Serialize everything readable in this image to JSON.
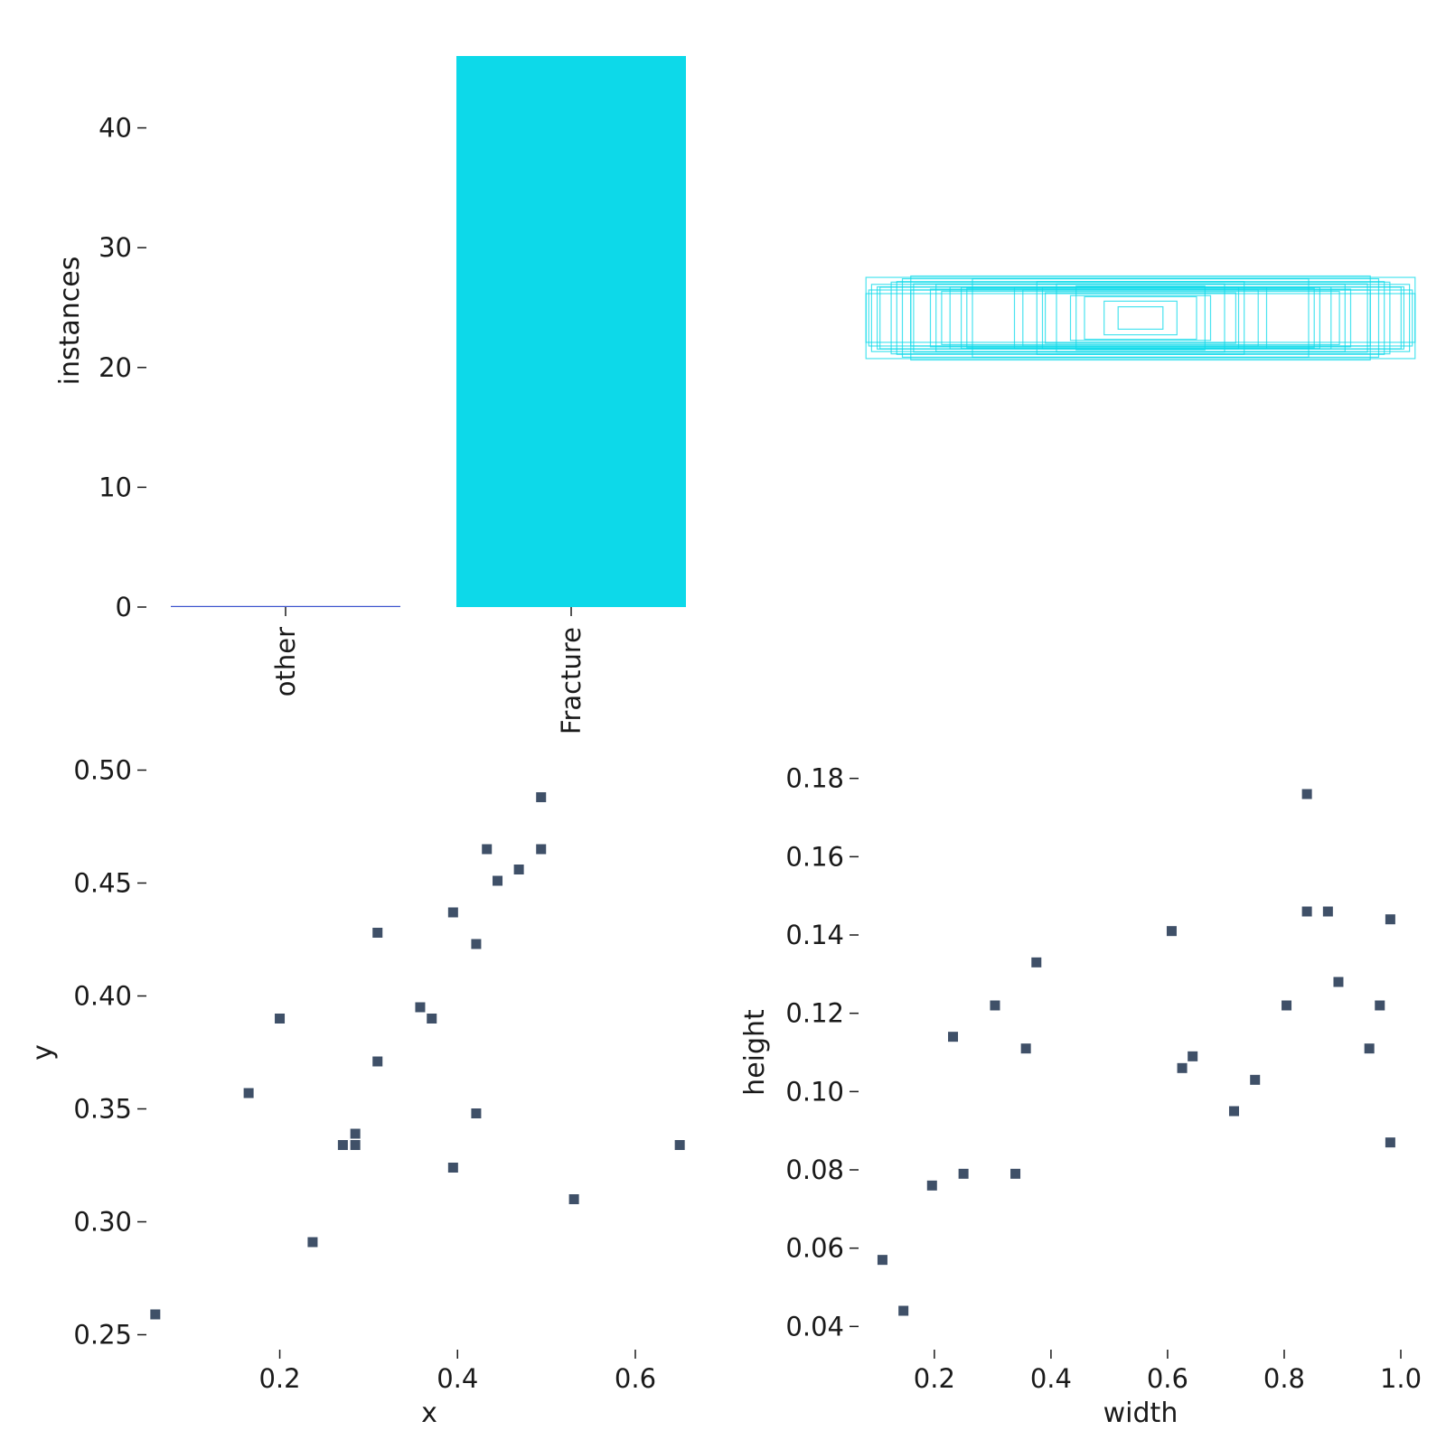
{
  "chart_data": [
    {
      "type": "bar",
      "categories": [
        "other",
        "Fracture"
      ],
      "values": [
        0,
        46
      ],
      "colors": [
        "#3a52cc",
        "#0dd9e9"
      ],
      "ylabel": "instances",
      "xlabel": "",
      "ylim": [
        0,
        46
      ],
      "yticks": [
        0,
        10,
        20,
        30,
        40
      ],
      "grid": false
    },
    {
      "type": "rectangles",
      "description": "bounding boxes overlaid at common center",
      "color": "#0dd9e9",
      "boxes": [
        [
          0.93,
          0.11
        ],
        [
          0.87,
          0.13
        ],
        [
          0.82,
          0.1
        ],
        [
          0.97,
          0.1
        ],
        [
          0.68,
          0.11
        ],
        [
          0.82,
          0.15
        ],
        [
          0.42,
          0.1
        ],
        [
          0.13,
          0.06
        ],
        [
          0.08,
          0.04
        ],
        [
          0.34,
          0.09
        ],
        [
          0.73,
          0.12
        ],
        [
          0.96,
          0.12
        ],
        [
          0.85,
          0.14
        ],
        [
          0.98,
          0.145
        ],
        [
          0.6,
          0.14
        ],
        [
          0.45,
          0.11
        ],
        [
          0.37,
          0.13
        ],
        [
          0.25,
          0.08
        ],
        [
          0.2,
          0.076
        ],
        [
          0.3,
          0.122
        ],
        [
          0.62,
          0.106
        ],
        [
          0.64,
          0.109
        ],
        [
          0.71,
          0.095
        ],
        [
          0.75,
          0.103
        ],
        [
          0.89,
          0.128
        ],
        [
          0.94,
          0.111
        ],
        [
          0.98,
          0.087
        ],
        [
          0.35,
          0.111
        ],
        [
          0.23,
          0.114
        ],
        [
          0.81,
          0.122
        ]
      ]
    },
    {
      "type": "scatter",
      "xlabel": "x",
      "ylabel": "y",
      "xlim": [
        0.05,
        0.66
      ],
      "ylim": [
        0.245,
        0.505
      ],
      "xticks": [
        "0.2",
        "0.4",
        "0.6"
      ],
      "yticks": [
        "0.25",
        "0.30",
        "0.35",
        "0.40",
        "0.45",
        "0.50"
      ],
      "marker_color": "#3f5068",
      "points": [
        [
          0.06,
          0.259
        ],
        [
          0.165,
          0.357
        ],
        [
          0.2,
          0.39
        ],
        [
          0.237,
          0.291
        ],
        [
          0.271,
          0.334
        ],
        [
          0.285,
          0.339
        ],
        [
          0.285,
          0.334
        ],
        [
          0.31,
          0.428
        ],
        [
          0.31,
          0.371
        ],
        [
          0.358,
          0.395
        ],
        [
          0.371,
          0.39
        ],
        [
          0.395,
          0.437
        ],
        [
          0.395,
          0.324
        ],
        [
          0.421,
          0.423
        ],
        [
          0.421,
          0.348
        ],
        [
          0.433,
          0.465
        ],
        [
          0.445,
          0.451
        ],
        [
          0.469,
          0.456
        ],
        [
          0.494,
          0.488
        ],
        [
          0.494,
          0.465
        ],
        [
          0.531,
          0.31
        ],
        [
          0.65,
          0.334
        ]
      ]
    },
    {
      "type": "scatter",
      "xlabel": "width",
      "ylabel": "height",
      "xlim": [
        0.07,
        1.0
      ],
      "ylim": [
        0.035,
        0.185
      ],
      "xticks": [
        "0.2",
        "0.4",
        "0.6",
        "0.8",
        "1.0"
      ],
      "yticks": [
        "0.04",
        "0.06",
        "0.08",
        "0.10",
        "0.12",
        "0.14",
        "0.16",
        "0.18"
      ],
      "marker_color": "#3f5068",
      "points": [
        [
          0.111,
          0.057
        ],
        [
          0.147,
          0.044
        ],
        [
          0.196,
          0.076
        ],
        [
          0.25,
          0.079
        ],
        [
          0.232,
          0.114
        ],
        [
          0.304,
          0.122
        ],
        [
          0.339,
          0.079
        ],
        [
          0.357,
          0.111
        ],
        [
          0.375,
          0.133
        ],
        [
          0.607,
          0.141
        ],
        [
          0.625,
          0.106
        ],
        [
          0.643,
          0.109
        ],
        [
          0.714,
          0.095
        ],
        [
          0.75,
          0.103
        ],
        [
          0.804,
          0.122
        ],
        [
          0.839,
          0.176
        ],
        [
          0.839,
          0.146
        ],
        [
          0.875,
          0.146
        ],
        [
          0.893,
          0.128
        ],
        [
          0.946,
          0.111
        ],
        [
          0.964,
          0.122
        ],
        [
          0.982,
          0.144
        ],
        [
          0.982,
          0.087
        ]
      ]
    }
  ]
}
